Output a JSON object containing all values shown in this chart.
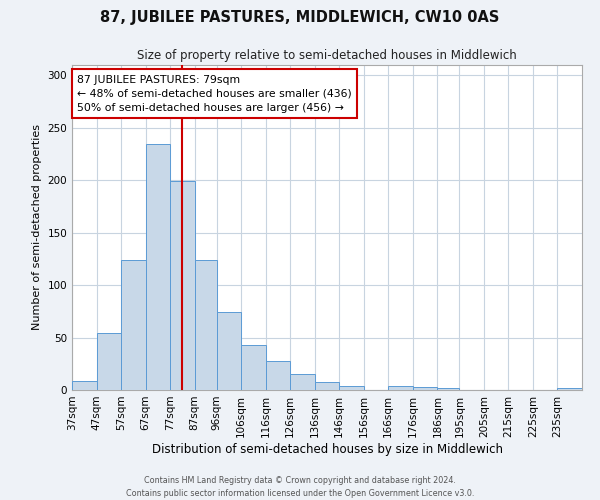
{
  "title": "87, JUBILEE PASTURES, MIDDLEWICH, CW10 0AS",
  "subtitle": "Size of property relative to semi-detached houses in Middlewich",
  "xlabel": "Distribution of semi-detached houses by size in Middlewich",
  "ylabel": "Number of semi-detached properties",
  "bar_labels": [
    "37sqm",
    "47sqm",
    "57sqm",
    "67sqm",
    "77sqm",
    "87sqm",
    "96sqm",
    "106sqm",
    "116sqm",
    "126sqm",
    "136sqm",
    "146sqm",
    "156sqm",
    "166sqm",
    "176sqm",
    "186sqm",
    "195sqm",
    "205sqm",
    "215sqm",
    "225sqm",
    "235sqm"
  ],
  "bar_values": [
    9,
    54,
    124,
    235,
    199,
    124,
    74,
    43,
    28,
    15,
    8,
    4,
    0,
    4,
    3,
    2,
    0,
    0,
    0,
    0,
    2
  ],
  "bin_edges": [
    37,
    47,
    57,
    67,
    77,
    87,
    96,
    106,
    116,
    126,
    136,
    146,
    156,
    166,
    176,
    186,
    195,
    205,
    215,
    225,
    235,
    245
  ],
  "bar_color": "#c8d8e8",
  "bar_edge_color": "#5b9bd5",
  "vline_x": 82,
  "vline_color": "#cc0000",
  "annotation_line1": "87 JUBILEE PASTURES: 79sqm",
  "annotation_line2": "← 48% of semi-detached houses are smaller (436)",
  "annotation_line3": "50% of semi-detached houses are larger (456) →",
  "annotation_box_color": "#ffffff",
  "annotation_box_edge_color": "#cc0000",
  "ylim": [
    0,
    310
  ],
  "yticks": [
    0,
    50,
    100,
    150,
    200,
    250,
    300
  ],
  "footer_line1": "Contains HM Land Registry data © Crown copyright and database right 2024.",
  "footer_line2": "Contains public sector information licensed under the Open Government Licence v3.0.",
  "background_color": "#eef2f7",
  "plot_bg_color": "#ffffff",
  "grid_color": "#c8d4e0",
  "title_fontsize": 10.5,
  "subtitle_fontsize": 8.5
}
